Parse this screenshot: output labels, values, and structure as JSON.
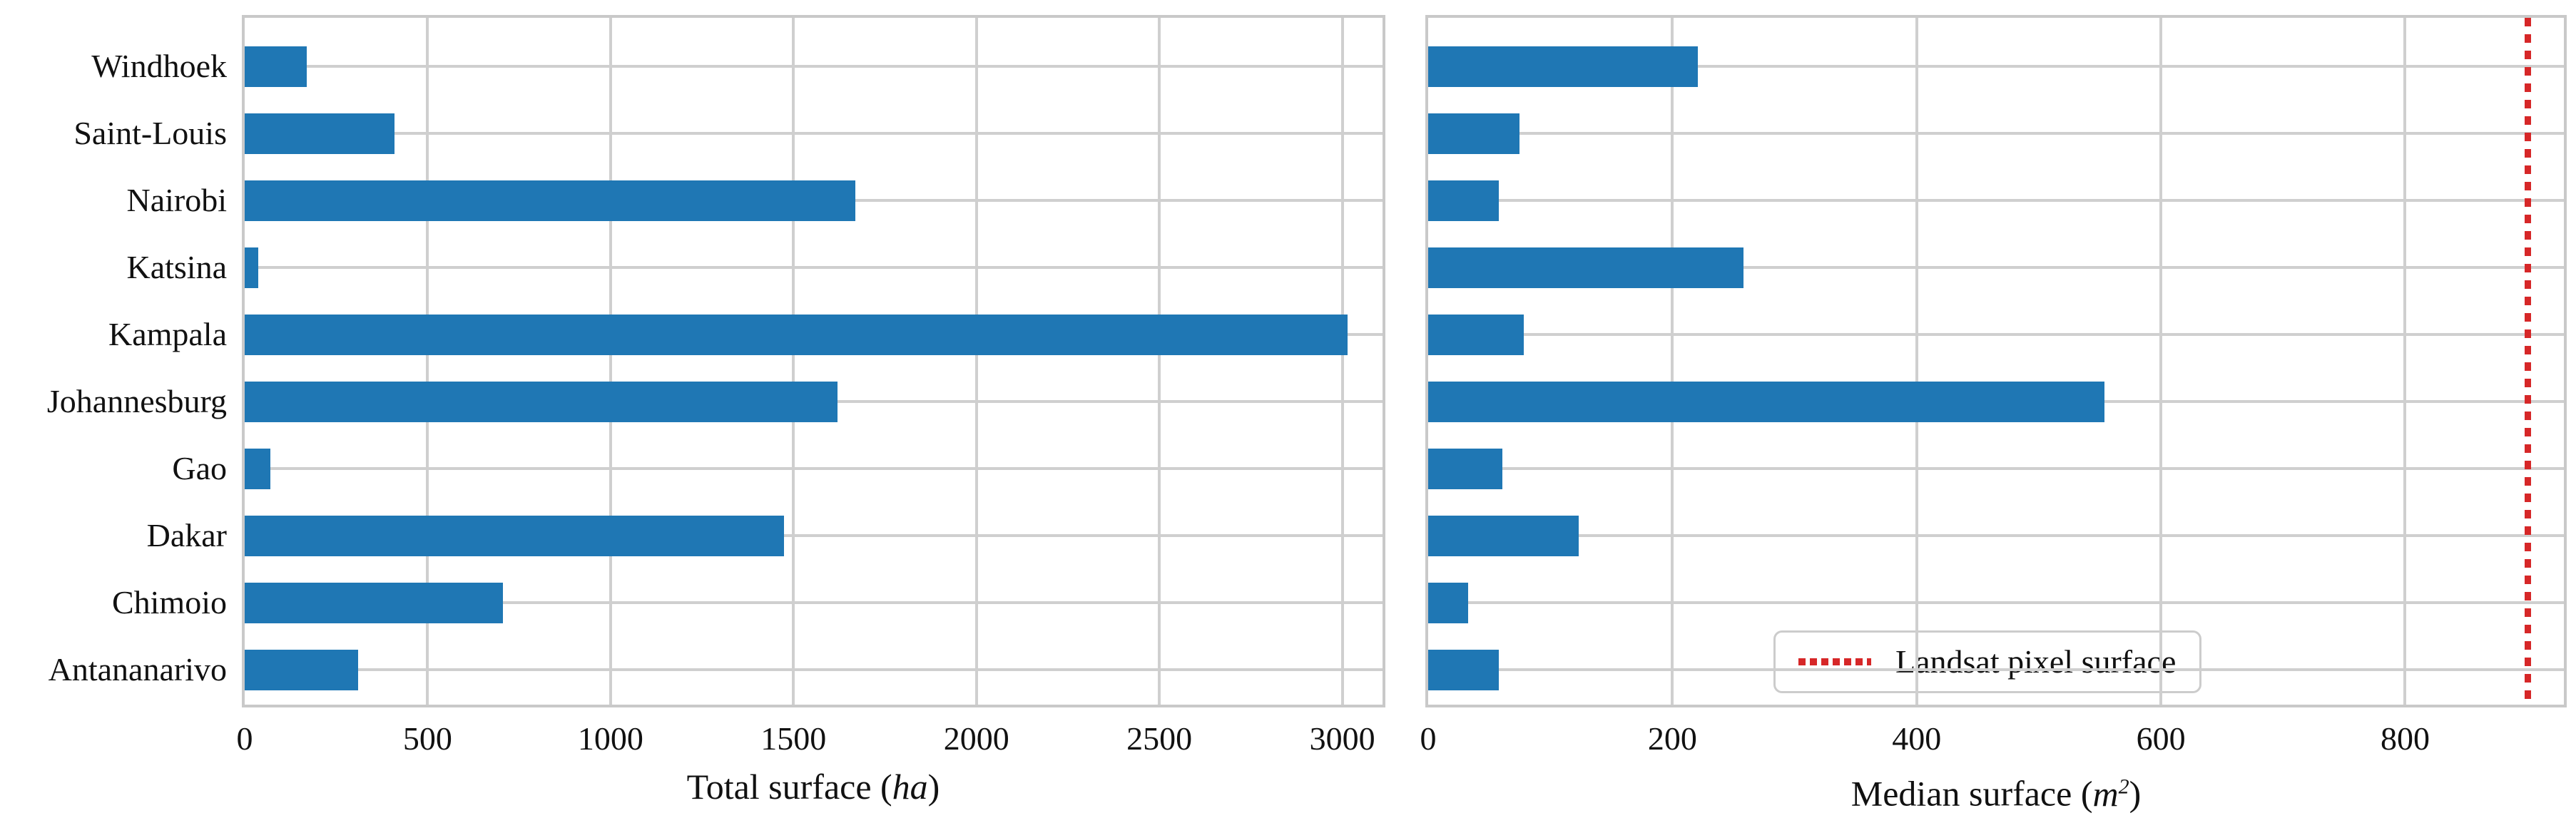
{
  "figure": {
    "background": "#ffffff",
    "grid_color": "#cfcfcf",
    "spine_color": "#c9c9c9",
    "text_color": "#111111"
  },
  "chart_data": [
    {
      "type": "bar",
      "orientation": "horizontal",
      "title": "",
      "xlabel": "Total surface (ha)",
      "xlabel_prefix": "Total surface (",
      "xlabel_unit": "ha",
      "xlabel_unit_sup": "",
      "xlabel_suffix": ")",
      "categories": [
        "Windhoek",
        "Saint-Louis",
        "Nairobi",
        "Katsina",
        "Kampala",
        "Johannesburg",
        "Gao",
        "Dakar",
        "Chimoio",
        "Antananarivo"
      ],
      "values": [
        170,
        410,
        1670,
        37,
        3015,
        1620,
        70,
        1475,
        705,
        310
      ],
      "xticks": [
        0,
        500,
        1000,
        1500,
        2000,
        2500,
        3000
      ],
      "xlim": [
        0,
        3110
      ],
      "bar_color": "#1f77b4",
      "grid": true,
      "legend": null
    },
    {
      "type": "bar",
      "orientation": "horizontal",
      "title": "",
      "xlabel": "Median surface (m2)",
      "xlabel_prefix": "Median surface (",
      "xlabel_unit": "m",
      "xlabel_unit_sup": "2",
      "xlabel_suffix": ")",
      "categories": [
        "Windhoek",
        "Saint-Louis",
        "Nairobi",
        "Katsina",
        "Kampala",
        "Johannesburg",
        "Gao",
        "Dakar",
        "Chimoio",
        "Antananarivo"
      ],
      "values": [
        221,
        75,
        58,
        258,
        78,
        554,
        61,
        123,
        33,
        58
      ],
      "xticks": [
        0,
        200,
        400,
        600,
        800
      ],
      "xlim": [
        0,
        930
      ],
      "bar_color": "#1f77b4",
      "grid": true,
      "refline": {
        "value": 900,
        "color": "#d62728",
        "style": "dotted",
        "label": "Landsat pixel surface"
      },
      "legend": {
        "entries": [
          "Landsat pixel surface"
        ],
        "position": "lower right"
      }
    }
  ]
}
